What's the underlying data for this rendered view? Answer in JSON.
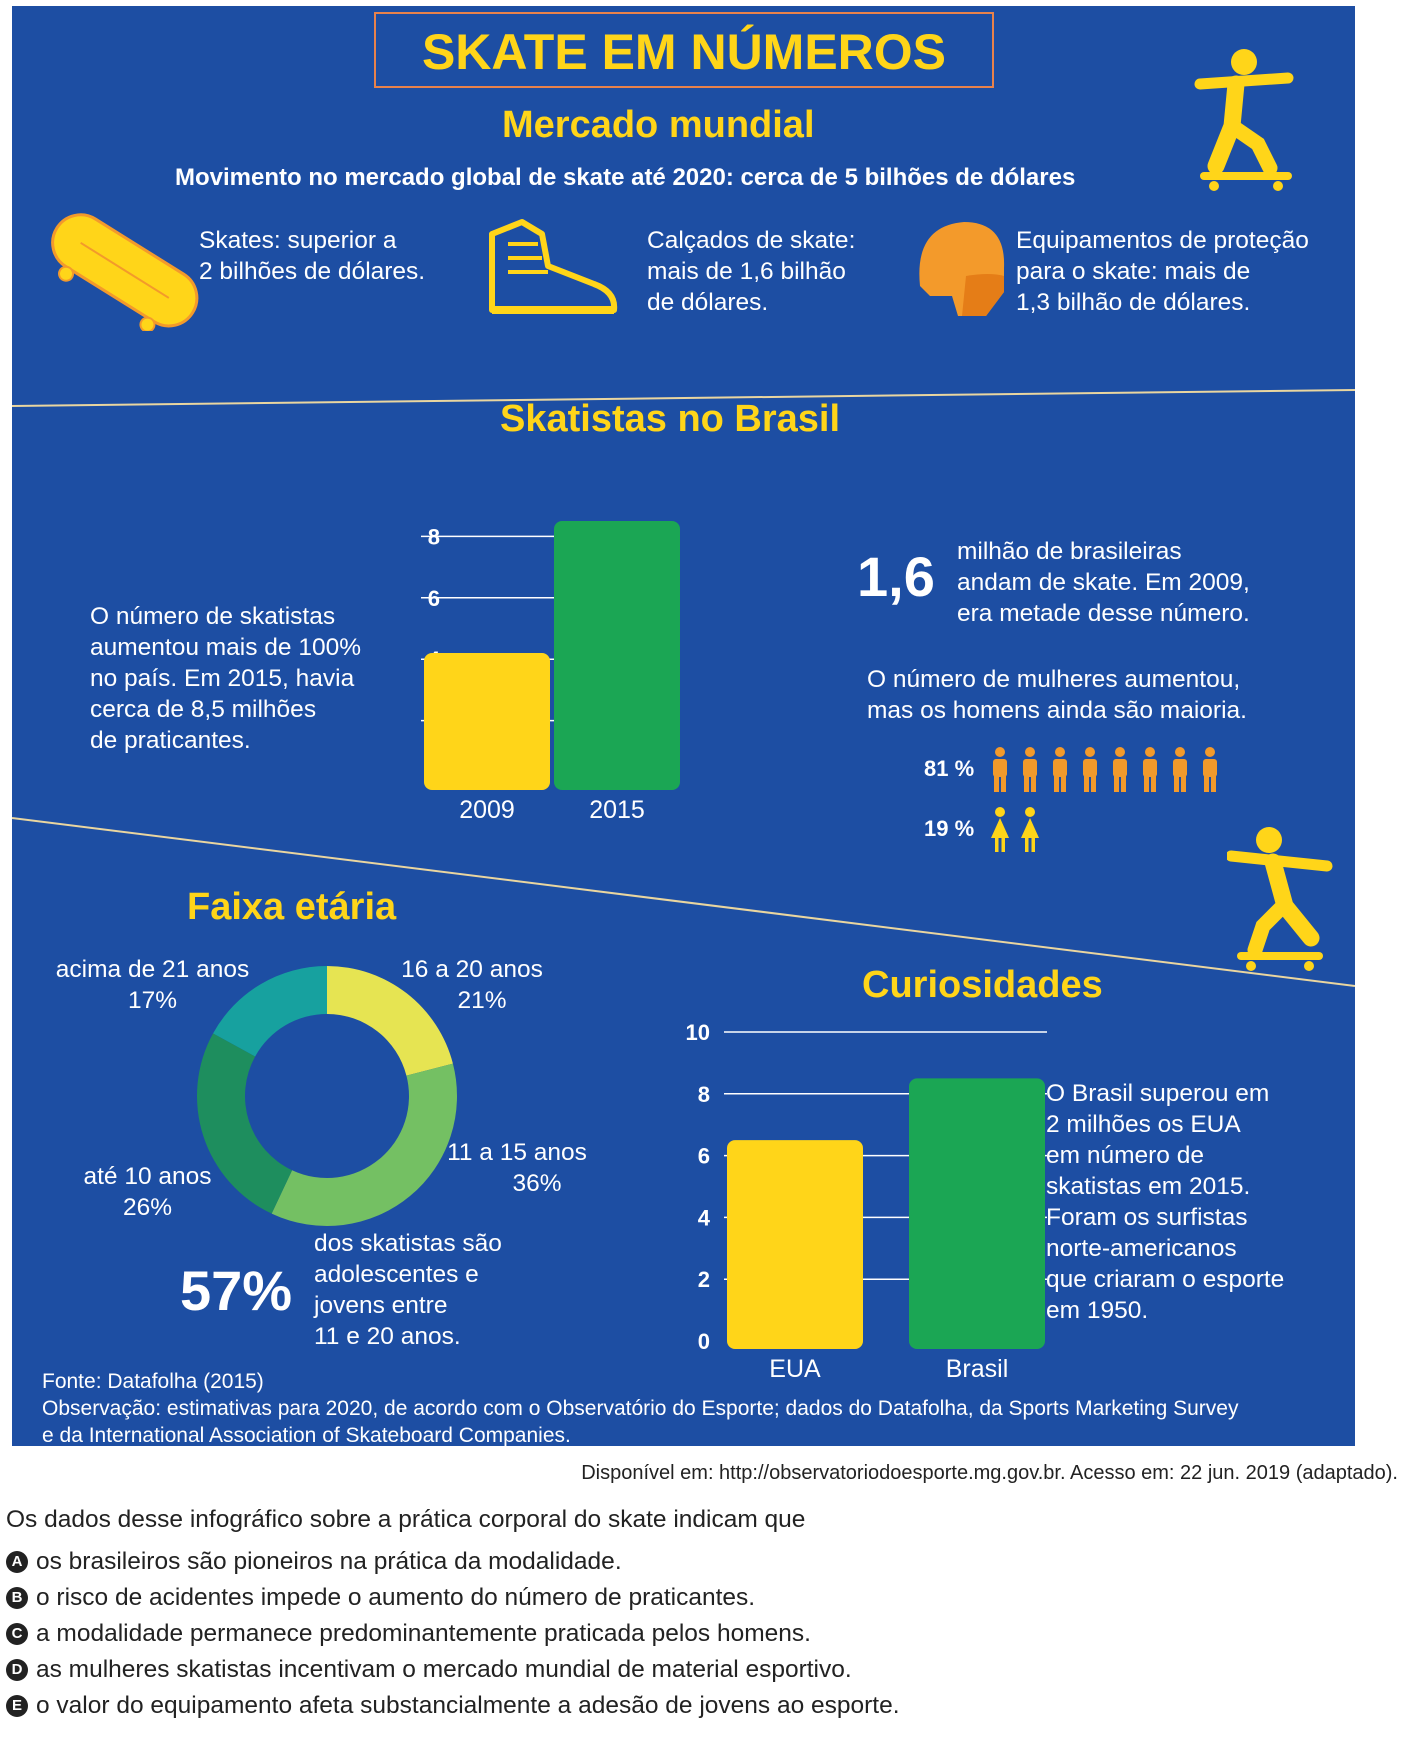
{
  "title": "SKATE EM NÚMEROS",
  "mercado": {
    "heading": "Mercado mundial",
    "subtitle": "Movimento no mercado global de skate até 2020: cerca de 5 bilhões de dólares",
    "skates": [
      "Skates: superior a",
      "2 bilhões de dólares."
    ],
    "calcados": [
      "Calçados de skate:",
      "mais de 1,6 bilhão",
      "de dólares."
    ],
    "equipamentos": [
      "Equipamentos de proteção",
      "para o skate:  mais de",
      "1,3 bilhão de dólares."
    ]
  },
  "brasil": {
    "heading": "Skatistas no Brasil",
    "left_text": [
      "O número de skatistas",
      "aumentou mais de 100%",
      "no país. Em 2015, havia",
      "cerca de 8,5 milhões",
      "de praticantes."
    ],
    "big_number": "1,6",
    "women_text": [
      "milhão de brasileiras",
      "andam de skate. Em 2009,",
      "era metade desse número."
    ],
    "gender_text": [
      "O número de mulheres aumentou,",
      "mas os homens ainda são maioria."
    ],
    "men_pct": "81 %",
    "women_pct": "19 %"
  },
  "faixa": {
    "heading": "Faixa etária",
    "labels": [
      {
        "name": "acima de 21 anos",
        "pct": "17%"
      },
      {
        "name": "16 a 20 anos",
        "pct": "21%"
      },
      {
        "name": "11 a 15 anos",
        "pct": "36%"
      },
      {
        "name": "até 10 anos",
        "pct": "26%"
      }
    ],
    "big_pct": "57%",
    "note": [
      "dos skatistas são",
      "adolescentes e",
      "jovens entre",
      "11 e 20 anos."
    ]
  },
  "curiosidades": {
    "heading": "Curiosidades",
    "text": [
      "O Brasil superou em",
      "2 milhões os EUA",
      "em número de",
      "skatistas em 2015.",
      "Foram os surfistas",
      "norte-americanos",
      "que criaram o esporte",
      "em 1950."
    ]
  },
  "footer": {
    "fonte": "Fonte: Datafolha (2015)",
    "obs1": "Observação: estimativas para 2020, de acordo com o Observatório do Esporte; dados do Datafolha, da Sports Marketing Survey",
    "obs2": "e da International Association of Skateboard Companies."
  },
  "source": "Disponível em: http://observatoriodoesporte.mg.gov.br. Acesso em: 22 jun. 2019 (adaptado).",
  "question": "Os dados desse infográfico sobre a prática corporal do skate indicam que",
  "options": [
    {
      "letter": "A",
      "text": "os brasileiros são pioneiros na prática da modalidade."
    },
    {
      "letter": "B",
      "text": "o risco de acidentes impede o aumento do número de praticantes."
    },
    {
      "letter": "C",
      "text": "a modalidade permanece predominantemente praticada pelos homens."
    },
    {
      "letter": "D",
      "text": "as mulheres skatistas incentivam o mercado mundial de material esportivo."
    },
    {
      "letter": "E",
      "text": "o valor do equipamento afeta substancialmente a adesão de jovens ao esporte."
    }
  ],
  "colors": {
    "background": "#1d4ea3",
    "yellow": "#ffd519",
    "green": "#1ba654",
    "orange": "#f39a2b"
  },
  "chart_data": [
    {
      "type": "bar",
      "title": "Skatistas no Brasil",
      "categories": [
        "2009",
        "2015"
      ],
      "values": [
        4.2,
        8.5
      ],
      "ylim": [
        0,
        10
      ],
      "yticks": [
        "0",
        "2",
        "4",
        "6",
        "8",
        "10"
      ],
      "bar_colors": [
        "#ffd519",
        "#1ba654"
      ]
    },
    {
      "type": "pie",
      "title": "Faixa etária",
      "categories": [
        "16 a 20 anos",
        "11 a 15 anos",
        "até 10 anos",
        "acima de 21 anos"
      ],
      "values": [
        21,
        36,
        26,
        17
      ],
      "colors": [
        "#e6e452",
        "#74c063",
        "#1e8e5e",
        "#17a19f"
      ]
    },
    {
      "type": "bar",
      "title": "Curiosidades",
      "categories": [
        "EUA",
        "Brasil"
      ],
      "values": [
        6.5,
        8.5
      ],
      "ylim": [
        0,
        10
      ],
      "yticks": [
        "0",
        "2",
        "4",
        "6",
        "8",
        "10"
      ],
      "bar_colors": [
        "#ffd519",
        "#1ba654"
      ]
    }
  ]
}
